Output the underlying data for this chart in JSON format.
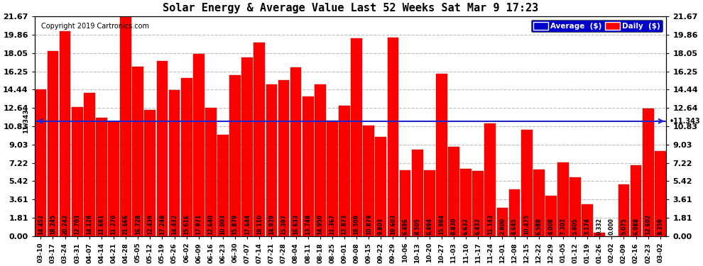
{
  "title": "Solar Energy & Average Value Last 52 Weeks Sat Mar 9 17:23",
  "copyright": "Copyright 2019 Cartronics.com",
  "average_label": "11.343",
  "average_value": 11.343,
  "bar_color": "#FF0000",
  "average_line_color": "#2222CC",
  "background_color": "#FFFFFF",
  "plot_bg_color": "#FFFFFF",
  "grid_color": "#AAAAAA",
  "ylim": [
    0,
    21.67
  ],
  "yticks": [
    0.0,
    1.81,
    3.61,
    5.42,
    7.22,
    9.03,
    10.83,
    12.64,
    14.44,
    16.25,
    18.05,
    19.86,
    21.67
  ],
  "legend_avg_color": "#0000CC",
  "legend_daily_color": "#FF0000",
  "categories": [
    "03-10",
    "03-17",
    "03-24",
    "03-31",
    "04-07",
    "04-14",
    "04-21",
    "04-28",
    "05-05",
    "05-12",
    "05-19",
    "05-26",
    "06-02",
    "06-09",
    "06-16",
    "06-23",
    "06-30",
    "07-07",
    "07-14",
    "07-21",
    "07-28",
    "08-04",
    "08-11",
    "08-18",
    "08-25",
    "09-01",
    "09-08",
    "09-15",
    "09-22",
    "09-29",
    "10-06",
    "10-13",
    "10-20",
    "10-27",
    "11-03",
    "11-10",
    "11-17",
    "11-24",
    "12-01",
    "12-08",
    "12-15",
    "12-22",
    "12-29",
    "01-05",
    "01-12",
    "01-19",
    "01-26",
    "02-02",
    "02-09",
    "02-16",
    "02-23",
    "03-02"
  ],
  "values": [
    14.452,
    18.245,
    20.242,
    12.703,
    14.128,
    11.681,
    11.27,
    21.666,
    16.728,
    12.439,
    17.248,
    14.432,
    15.616,
    17.971,
    12.64,
    10.003,
    15.879,
    17.644,
    19.11,
    14.929,
    15.397,
    16.633,
    13.748,
    14.95,
    11.367,
    12.873,
    19.509,
    10.879,
    9.803,
    19.603,
    6.496,
    8.505,
    6.494,
    15.984,
    8.83,
    6.632,
    6.432,
    11.143,
    2.8,
    4.645,
    10.475,
    6.588,
    4.008,
    7.302,
    5.805,
    3.174,
    0.332,
    0.0,
    5.075,
    6.988,
    12.602,
    8.359
  ],
  "value_label_fontsize": 5.5,
  "xlabel_fontsize": 6.5,
  "ylabel_fontsize": 8,
  "ytick_fontsize": 8
}
